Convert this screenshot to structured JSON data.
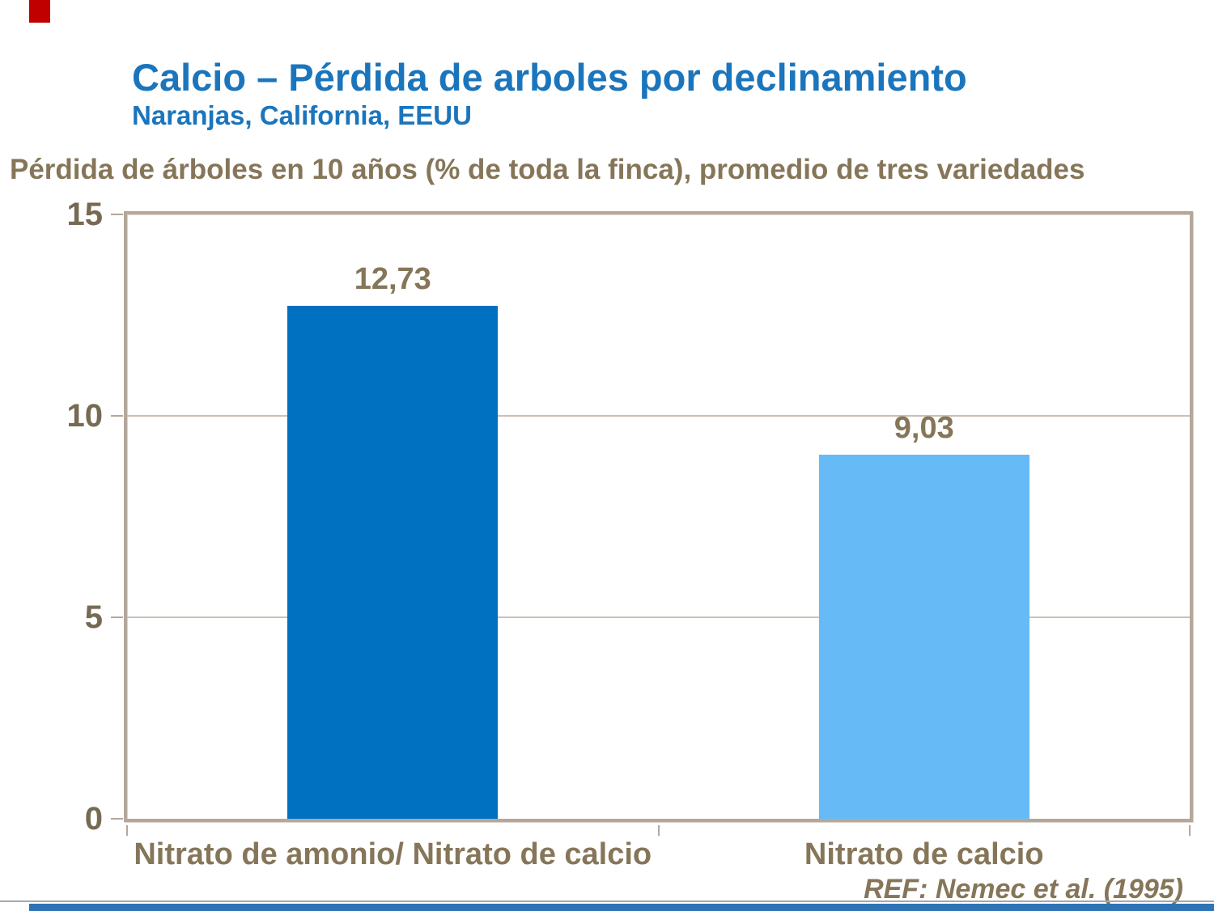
{
  "slide": {
    "title": "Calcio – Pérdida de arboles por declinamiento",
    "subtitle": "Naranjas, California, EEUU",
    "reference": "REF: Nemec et al. (1995)"
  },
  "colors": {
    "title_blue": "#1B75BC",
    "text_brown": "#867659",
    "tick_brown": "#766A52",
    "axis_frame_tan": "#B5A79A",
    "gridline_tan": "#CBBFB4",
    "bar_dark_blue": "#0070C0",
    "bar_light_blue": "#66BBF7",
    "accent_red": "#C00000",
    "footer_blue": "#2E74B5",
    "footer_line_gray": "#A8A8A8"
  },
  "chart_data": {
    "type": "bar",
    "title": "Pérdida de árboles en 10 años (% de toda la finca), promedio de tres variedades",
    "categories": [
      "Nitrato de amonio/ Nitrato de calcio",
      "Nitrato de calcio"
    ],
    "values": [
      12.73,
      9.03
    ],
    "value_labels": [
      "12,73",
      "9,03"
    ],
    "bar_colors": [
      "#0070C0",
      "#66BBF7"
    ],
    "ylim": [
      0,
      15
    ],
    "yticks": [
      0,
      5,
      10,
      15
    ],
    "ytick_labels": [
      "0",
      "5",
      "10",
      "15"
    ],
    "xlabel": "",
    "ylabel": "",
    "grid": "horizontal",
    "legend": "none"
  }
}
